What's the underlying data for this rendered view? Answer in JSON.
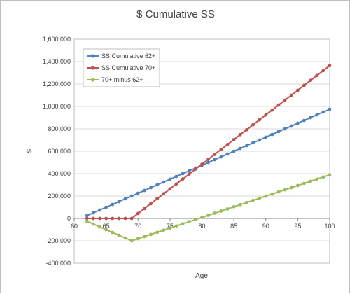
{
  "chart_data": {
    "type": "line",
    "title": "$ Cumulative SS",
    "xlabel": "Age",
    "ylabel": "$",
    "xlim": [
      60,
      100
    ],
    "ylim": [
      -400000,
      1600000
    ],
    "x_ticks": [
      60,
      65,
      70,
      75,
      80,
      85,
      90,
      95,
      100
    ],
    "y_ticks": [
      -400000,
      -200000,
      0,
      200000,
      400000,
      600000,
      800000,
      1000000,
      1200000,
      1400000,
      1600000
    ],
    "x_tick_labels": [
      "60",
      "65",
      "70",
      "75",
      "80",
      "85",
      "90",
      "95",
      "100"
    ],
    "y_tick_labels": [
      "-400,000",
      "-200,000",
      "0",
      "200,000",
      "400,000",
      "600,000",
      "800,000",
      "1,000,000",
      "1,200,000",
      "1,400,000",
      "1,600,000"
    ],
    "grid": "horizontal",
    "legend_position": "top-left",
    "series": [
      {
        "name": "SS Cumulative 62+",
        "color": "#4f81bd",
        "x": [
          62,
          63,
          64,
          65,
          66,
          67,
          68,
          69,
          70,
          71,
          72,
          73,
          74,
          75,
          76,
          77,
          78,
          79,
          80,
          81,
          82,
          83,
          84,
          85,
          86,
          87,
          88,
          89,
          90,
          91,
          92,
          93,
          94,
          95,
          96,
          97,
          98,
          99,
          100
        ],
        "y": [
          25000,
          50000,
          75000,
          100000,
          125000,
          150000,
          175000,
          200000,
          225000,
          250000,
          275000,
          300000,
          325000,
          350000,
          375000,
          400000,
          425000,
          450000,
          475000,
          500000,
          525000,
          550000,
          575000,
          600000,
          625000,
          650000,
          675000,
          700000,
          725000,
          750000,
          775000,
          800000,
          825000,
          850000,
          875000,
          900000,
          925000,
          950000,
          975000
        ]
      },
      {
        "name": "SS Cumulative 70+",
        "color": "#c0504d",
        "x": [
          62,
          63,
          64,
          65,
          66,
          67,
          68,
          69,
          70,
          71,
          72,
          73,
          74,
          75,
          76,
          77,
          78,
          79,
          80,
          81,
          82,
          83,
          84,
          85,
          86,
          87,
          88,
          89,
          90,
          91,
          92,
          93,
          94,
          95,
          96,
          97,
          98,
          99,
          100
        ],
        "y": [
          0,
          0,
          0,
          0,
          0,
          0,
          0,
          0,
          44000,
          88000,
          132000,
          176000,
          220000,
          264000,
          308000,
          352000,
          396000,
          440000,
          484000,
          528000,
          572000,
          616000,
          660000,
          704000,
          748000,
          792000,
          836000,
          880000,
          924000,
          968000,
          1012000,
          1056000,
          1100000,
          1144000,
          1188000,
          1232000,
          1276000,
          1320000,
          1364000
        ]
      },
      {
        "name": "70+ minus 62+",
        "color": "#9bbb59",
        "x": [
          62,
          63,
          64,
          65,
          66,
          67,
          68,
          69,
          70,
          71,
          72,
          73,
          74,
          75,
          76,
          77,
          78,
          79,
          80,
          81,
          82,
          83,
          84,
          85,
          86,
          87,
          88,
          89,
          90,
          91,
          92,
          93,
          94,
          95,
          96,
          97,
          98,
          99,
          100
        ],
        "y": [
          -25000,
          -50000,
          -75000,
          -100000,
          -125000,
          -150000,
          -175000,
          -200000,
          -181000,
          -162000,
          -143000,
          -124000,
          -105000,
          -86000,
          -67000,
          -48000,
          -29000,
          -10000,
          9000,
          28000,
          47000,
          66000,
          85000,
          104000,
          123000,
          142000,
          161000,
          180000,
          199000,
          218000,
          237000,
          256000,
          275000,
          294000,
          313000,
          332000,
          351000,
          370000,
          389000
        ]
      }
    ]
  }
}
